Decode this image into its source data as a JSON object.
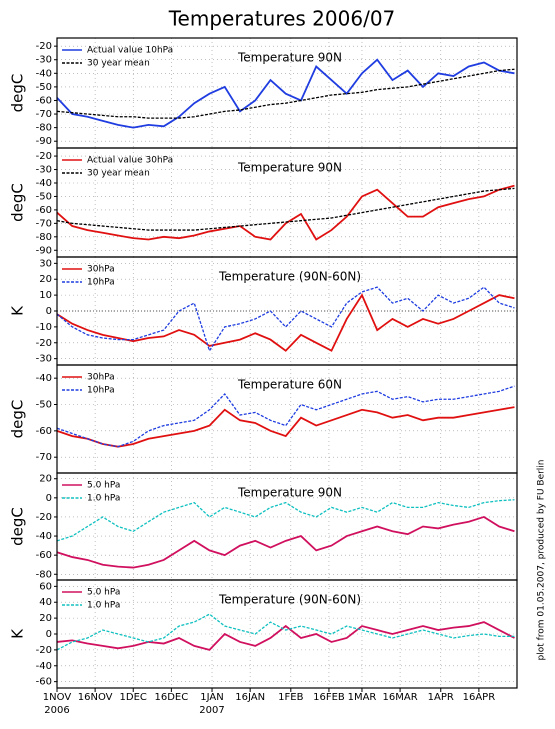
{
  "title": "Temperatures 2006/07",
  "credit": "plot from 01.05.2007, produced by FU Berlin",
  "x_axis": {
    "x": [
      0,
      6,
      12,
      18,
      24,
      30,
      36,
      42,
      48,
      54,
      60,
      66,
      72,
      78,
      84,
      90,
      96,
      102,
      108,
      114,
      120,
      126,
      132,
      138,
      144,
      150,
      156,
      162,
      168,
      174,
      180
    ],
    "xlim": [
      0,
      181
    ],
    "xticks": [
      {
        "value": 0,
        "label": "1NOV"
      },
      {
        "value": 15,
        "label": "16NOV"
      },
      {
        "value": 30,
        "label": "1DEC"
      },
      {
        "value": 45,
        "label": "16DEC"
      },
      {
        "value": 61,
        "label": "1JAN"
      },
      {
        "value": 76,
        "label": "16JAN"
      },
      {
        "value": 92,
        "label": "1FEB"
      },
      {
        "value": 107,
        "label": "16FEB"
      },
      {
        "value": 120,
        "label": "1MAR"
      },
      {
        "value": 135,
        "label": "16MAR"
      },
      {
        "value": 151,
        "label": "1APR"
      },
      {
        "value": 166,
        "label": "16APR"
      }
    ],
    "year_labels": [
      {
        "value": 0,
        "label": "2006"
      },
      {
        "value": 61,
        "label": "2007"
      }
    ]
  },
  "chart_data": [
    {
      "type": "line",
      "title": "Temperature 90N",
      "ylabel": "degC",
      "ylim": [
        -95,
        -14
      ],
      "yticks": [
        -20,
        -30,
        -40,
        -50,
        -60,
        -70,
        -80,
        -90
      ],
      "grid": true,
      "series": [
        {
          "name": "Actual value 10hPa",
          "color": "#1f3de0",
          "dashed": false,
          "values": [
            -58,
            -70,
            -72,
            -75,
            -78,
            -80,
            -78,
            -79,
            -72,
            -62,
            -55,
            -50,
            -68,
            -60,
            -45,
            -55,
            -60,
            -35,
            -45,
            -55,
            -40,
            -30,
            -45,
            -38,
            -50,
            -40,
            -42,
            -35,
            -32,
            -38,
            -40
          ]
        },
        {
          "name": "30 year mean",
          "color": "#000000",
          "dashed": true,
          "values": [
            -68,
            -69,
            -70,
            -71,
            -72,
            -72,
            -73,
            -73,
            -73,
            -72,
            -70,
            -68,
            -67,
            -65,
            -63,
            -62,
            -60,
            -58,
            -56,
            -55,
            -54,
            -52,
            -51,
            -50,
            -48,
            -46,
            -44,
            -42,
            -40,
            -38,
            -37
          ]
        }
      ]
    },
    {
      "type": "line",
      "title": "Temperature 90N",
      "ylabel": "degC",
      "ylim": [
        -95,
        -14
      ],
      "yticks": [
        -20,
        -30,
        -40,
        -50,
        -60,
        -70,
        -80,
        -90
      ],
      "grid": true,
      "series": [
        {
          "name": "Actual value 30hPa",
          "color": "#e01010",
          "dashed": false,
          "values": [
            -62,
            -72,
            -75,
            -77,
            -79,
            -81,
            -82,
            -80,
            -81,
            -79,
            -76,
            -74,
            -72,
            -80,
            -82,
            -70,
            -63,
            -82,
            -75,
            -65,
            -50,
            -45,
            -55,
            -65,
            -65,
            -58,
            -55,
            -52,
            -50,
            -45,
            -42
          ]
        },
        {
          "name": "30 year mean",
          "color": "#000000",
          "dashed": true,
          "values": [
            -68,
            -70,
            -71,
            -72,
            -73,
            -74,
            -75,
            -75,
            -75,
            -75,
            -74,
            -73,
            -72,
            -71,
            -70,
            -69,
            -68,
            -67,
            -66,
            -64,
            -62,
            -60,
            -58,
            -56,
            -54,
            -52,
            -50,
            -48,
            -46,
            -45,
            -44
          ]
        }
      ]
    },
    {
      "type": "line",
      "title": "Temperature (90N-60N)",
      "ylabel": "K",
      "ylim": [
        -34,
        34
      ],
      "yticks": [
        30,
        20,
        10,
        0,
        -10,
        -20,
        -30
      ],
      "grid": true,
      "zero_line": true,
      "series": [
        {
          "name": "30hPa",
          "color": "#e01010",
          "dashed": false,
          "values": [
            -2,
            -8,
            -12,
            -15,
            -17,
            -19,
            -17,
            -16,
            -12,
            -15,
            -22,
            -20,
            -18,
            -14,
            -18,
            -25,
            -15,
            -20,
            -25,
            -5,
            10,
            -12,
            -5,
            -10,
            -5,
            -8,
            -5,
            0,
            5,
            10,
            8
          ]
        },
        {
          "name": "10hPa",
          "color": "#1f3de0",
          "dashed": true,
          "values": [
            -2,
            -10,
            -15,
            -17,
            -18,
            -18,
            -15,
            -12,
            0,
            5,
            -25,
            -10,
            -8,
            -5,
            0,
            -10,
            0,
            -5,
            -10,
            5,
            12,
            15,
            5,
            8,
            0,
            10,
            5,
            8,
            15,
            5,
            2
          ]
        }
      ]
    },
    {
      "type": "line",
      "title": "Temperature 60N",
      "ylabel": "degC",
      "ylim": [
        -76,
        -35
      ],
      "yticks": [
        -40,
        -50,
        -60,
        -70
      ],
      "grid": true,
      "series": [
        {
          "name": "30hPa",
          "color": "#e01010",
          "dashed": false,
          "values": [
            -60,
            -62,
            -63,
            -65,
            -66,
            -65,
            -63,
            -62,
            -61,
            -60,
            -58,
            -52,
            -56,
            -57,
            -60,
            -62,
            -55,
            -58,
            -56,
            -54,
            -52,
            -53,
            -55,
            -54,
            -56,
            -55,
            -55,
            -54,
            -53,
            -52,
            -51
          ]
        },
        {
          "name": "10hPa",
          "color": "#1f3de0",
          "dashed": true,
          "values": [
            -59,
            -61,
            -63,
            -65,
            -66,
            -64,
            -60,
            -58,
            -57,
            -56,
            -52,
            -46,
            -54,
            -53,
            -56,
            -58,
            -50,
            -52,
            -50,
            -48,
            -46,
            -45,
            -48,
            -47,
            -49,
            -48,
            -48,
            -47,
            -46,
            -45,
            -43
          ]
        }
      ]
    },
    {
      "type": "line",
      "title": "Temperature 90N",
      "ylabel": "degC",
      "ylim": [
        -86,
        26
      ],
      "yticks": [
        20,
        0,
        -20,
        -40,
        -60,
        -80
      ],
      "grid": true,
      "series": [
        {
          "name": "5.0 hPa",
          "color": "#d0105e",
          "dashed": false,
          "values": [
            -57,
            -62,
            -65,
            -70,
            -72,
            -73,
            -70,
            -65,
            -55,
            -45,
            -55,
            -60,
            -50,
            -45,
            -52,
            -45,
            -40,
            -55,
            -50,
            -40,
            -35,
            -30,
            -35,
            -38,
            -30,
            -32,
            -28,
            -25,
            -20,
            -30,
            -35
          ]
        },
        {
          "name": "1.0 hPa",
          "color": "#10c0c0",
          "dashed": true,
          "values": [
            -45,
            -40,
            -30,
            -20,
            -30,
            -35,
            -25,
            -15,
            -10,
            -5,
            -20,
            -10,
            -15,
            -20,
            -10,
            -5,
            -15,
            -20,
            -10,
            -15,
            -10,
            -15,
            -5,
            -10,
            -10,
            -5,
            -8,
            -10,
            -5,
            -3,
            -2
          ]
        }
      ]
    },
    {
      "type": "line",
      "title": "Temperature (90N-60N)",
      "ylabel": "K",
      "ylim": [
        -68,
        68
      ],
      "yticks": [
        60,
        40,
        20,
        0,
        -20,
        -40,
        -60
      ],
      "grid": true,
      "series": [
        {
          "name": "5.0 hPa",
          "color": "#d0105e",
          "dashed": false,
          "values": [
            -10,
            -8,
            -12,
            -15,
            -18,
            -15,
            -10,
            -12,
            -5,
            -15,
            -20,
            0,
            -10,
            -15,
            -5,
            10,
            -5,
            0,
            -10,
            -5,
            10,
            5,
            0,
            5,
            10,
            5,
            8,
            10,
            15,
            5,
            -5
          ]
        },
        {
          "name": "1.0 hPa",
          "color": "#10c0c0",
          "dashed": true,
          "values": [
            -20,
            -10,
            -5,
            5,
            0,
            -5,
            -10,
            -5,
            10,
            15,
            25,
            10,
            5,
            0,
            15,
            5,
            10,
            5,
            0,
            10,
            5,
            0,
            -5,
            0,
            5,
            0,
            -5,
            -2,
            0,
            -3,
            -3
          ]
        }
      ]
    }
  ]
}
